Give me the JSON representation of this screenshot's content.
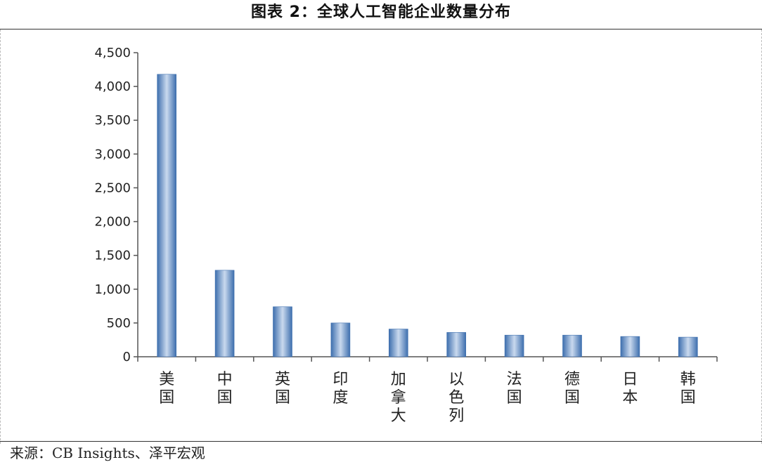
{
  "title": "图表 2：全球人工智能企业数量分布",
  "source": "来源：CB Insights、泽平宏观",
  "colors": {
    "bar_edge": "#3e6fae",
    "bar_mid": "#c9d9ee",
    "axis": "#555555"
  },
  "chart_data": {
    "type": "bar",
    "categories": [
      "美国",
      "中国",
      "英国",
      "印度",
      "加拿大",
      "以色列",
      "法国",
      "德国",
      "日本",
      "韩国"
    ],
    "values": [
      4180,
      1280,
      740,
      500,
      410,
      360,
      320,
      320,
      300,
      290
    ],
    "yticks": [
      "0",
      "500",
      "1,000",
      "1,500",
      "2,000",
      "2,500",
      "3,000",
      "3,500",
      "4,000",
      "4,500"
    ],
    "ylim": [
      0,
      4500
    ],
    "xlabel": "",
    "ylabel": "",
    "grid": false,
    "legend": "none"
  }
}
